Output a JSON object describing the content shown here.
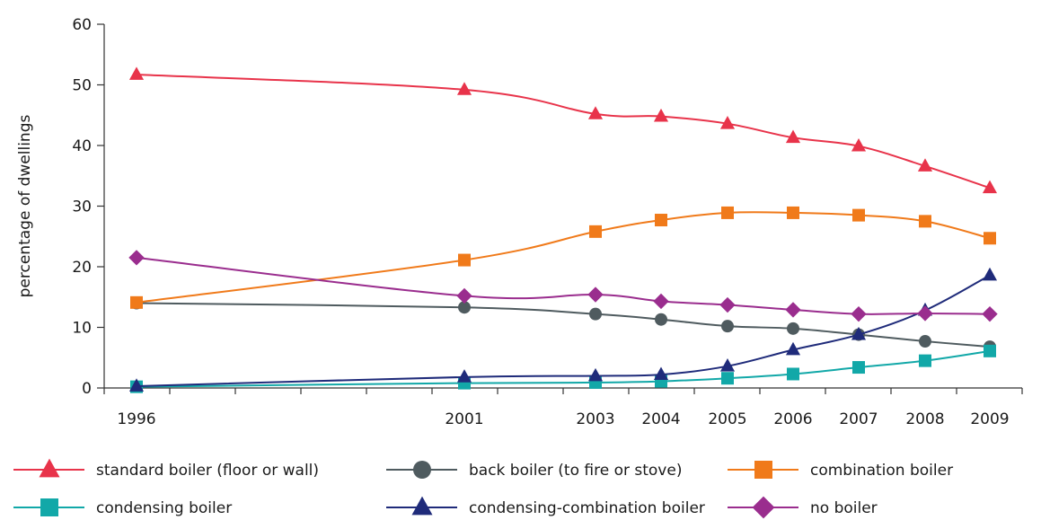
{
  "chart_data": {
    "type": "line",
    "title": "",
    "xlabel": "",
    "ylabel": "percentage of dwellings",
    "ylim": [
      0,
      60
    ],
    "yticks": [
      0,
      10,
      20,
      30,
      40,
      50,
      60
    ],
    "x": [
      "1996",
      "2001",
      "2003",
      "2004",
      "2005",
      "2006",
      "2007",
      "2008",
      "2009"
    ],
    "grid": false,
    "legend_position": "bottom",
    "series": [
      {
        "name": "standard boiler (floor or wall)",
        "color": "#e8334a",
        "marker": "triangle",
        "values": [
          51.7,
          49.2,
          45.2,
          44.8,
          43.6,
          41.3,
          39.9,
          36.6,
          33.0
        ]
      },
      {
        "name": "back boiler (to fire or stove)",
        "color": "#4f5b5f",
        "marker": "circle",
        "values": [
          14.0,
          13.3,
          12.2,
          11.3,
          10.2,
          9.8,
          8.8,
          7.7,
          6.8
        ]
      },
      {
        "name": "combination boiler",
        "color": "#f07a1a",
        "marker": "square",
        "values": [
          14.1,
          21.1,
          25.8,
          27.7,
          28.9,
          28.9,
          28.5,
          27.5,
          24.7
        ]
      },
      {
        "name": "condensing boiler",
        "color": "#12a8a8",
        "marker": "square",
        "values": [
          0.2,
          0.8,
          0.9,
          1.1,
          1.6,
          2.3,
          3.4,
          4.5,
          6.1
        ]
      },
      {
        "name": "condensing-combination  boiler",
        "color": "#1f2b7a",
        "marker": "triangle",
        "values": [
          0.3,
          1.8,
          2.0,
          2.2,
          3.6,
          6.3,
          8.8,
          12.8,
          18.6
        ]
      },
      {
        "name": "no boiler",
        "color": "#9a2d8e",
        "marker": "diamond",
        "values": [
          21.5,
          15.2,
          15.4,
          14.3,
          13.7,
          12.9,
          12.2,
          12.3,
          12.2
        ]
      }
    ]
  }
}
